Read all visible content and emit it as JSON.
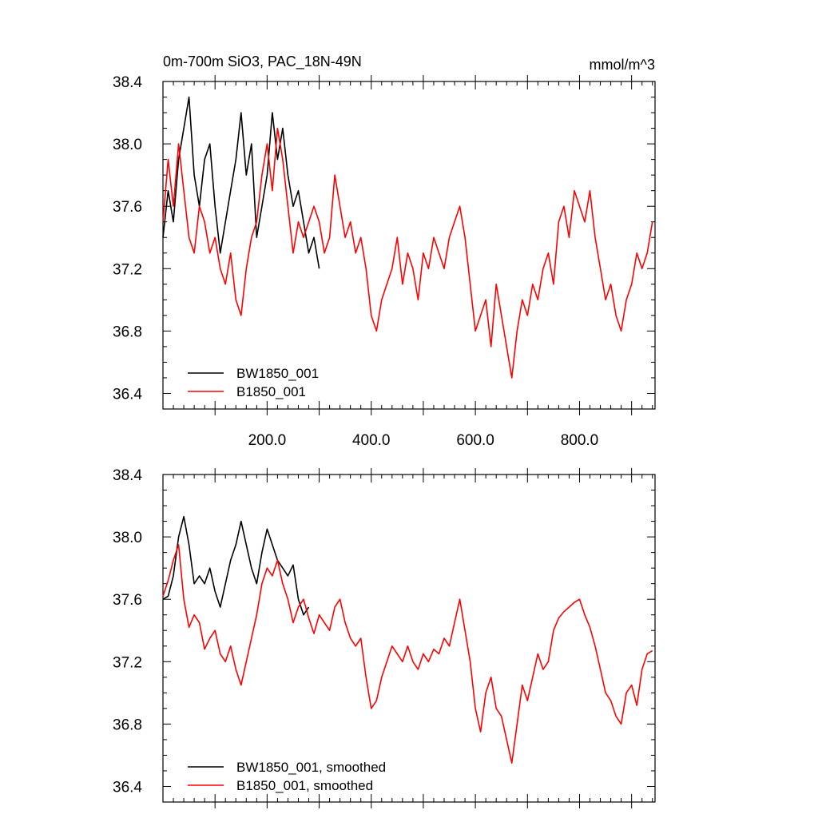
{
  "chart_data": [
    {
      "type": "line",
      "title": "0m-700m SiO3, PAC_18N-49N",
      "units_label": "mmol/m^3",
      "xlabel": "",
      "ylabel": "",
      "xlim": [
        0,
        945
      ],
      "ylim": [
        36.3,
        38.4
      ],
      "yticks": [
        38.4,
        38.0,
        37.6,
        37.2,
        36.8,
        36.4
      ],
      "ytick_labels": [
        "38.4",
        "38.0",
        "37.6",
        "37.2",
        "36.8",
        "36.4"
      ],
      "xticks": [
        200,
        400,
        600,
        800
      ],
      "xtick_labels": [
        "200.0",
        "400.0",
        "600.0",
        "800.0"
      ],
      "grid": false,
      "legend_position": "bottom-left",
      "series": [
        {
          "name": "BW1850_001",
          "color": "#000000",
          "x": [
            0,
            10,
            20,
            30,
            40,
            50,
            60,
            70,
            80,
            90,
            100,
            110,
            120,
            130,
            140,
            150,
            160,
            170,
            180,
            190,
            200,
            210,
            220,
            230,
            240,
            250,
            260,
            270,
            280,
            290,
            300
          ],
          "y": [
            37.4,
            37.7,
            37.5,
            37.9,
            38.1,
            38.3,
            37.8,
            37.6,
            37.9,
            38.0,
            37.6,
            37.3,
            37.5,
            37.7,
            37.9,
            38.2,
            37.8,
            38.0,
            37.4,
            37.6,
            37.8,
            38.2,
            37.9,
            38.1,
            37.8,
            37.6,
            37.7,
            37.5,
            37.3,
            37.4,
            37.2
          ]
        },
        {
          "name": "B1850_001",
          "color": "#ff0000",
          "x": [
            0,
            10,
            20,
            30,
            40,
            50,
            60,
            70,
            80,
            90,
            100,
            110,
            120,
            130,
            140,
            150,
            160,
            170,
            180,
            190,
            200,
            210,
            220,
            230,
            240,
            250,
            260,
            270,
            280,
            290,
            300,
            310,
            320,
            330,
            340,
            350,
            360,
            370,
            380,
            390,
            400,
            410,
            420,
            430,
            440,
            450,
            460,
            470,
            480,
            490,
            500,
            510,
            520,
            530,
            540,
            550,
            560,
            570,
            580,
            590,
            600,
            610,
            620,
            630,
            640,
            650,
            660,
            670,
            680,
            690,
            700,
            710,
            720,
            730,
            740,
            750,
            760,
            770,
            780,
            790,
            800,
            810,
            820,
            830,
            840,
            850,
            860,
            870,
            880,
            890,
            900,
            910,
            920,
            930,
            940
          ],
          "y": [
            37.5,
            37.9,
            37.6,
            38.0,
            37.7,
            37.4,
            37.3,
            37.6,
            37.5,
            37.3,
            37.4,
            37.2,
            37.1,
            37.3,
            37.0,
            36.9,
            37.2,
            37.4,
            37.5,
            37.8,
            38.0,
            37.7,
            38.1,
            37.9,
            37.6,
            37.3,
            37.5,
            37.4,
            37.5,
            37.6,
            37.5,
            37.3,
            37.4,
            37.8,
            37.6,
            37.4,
            37.5,
            37.3,
            37.4,
            37.2,
            36.9,
            36.8,
            37.0,
            37.1,
            37.2,
            37.4,
            37.1,
            37.3,
            37.2,
            37.0,
            37.3,
            37.2,
            37.4,
            37.3,
            37.2,
            37.4,
            37.5,
            37.6,
            37.4,
            37.1,
            36.8,
            36.9,
            37.0,
            36.7,
            37.1,
            36.9,
            36.7,
            36.5,
            36.8,
            37.0,
            36.9,
            37.1,
            37.0,
            37.2,
            37.3,
            37.1,
            37.5,
            37.6,
            37.4,
            37.7,
            37.6,
            37.5,
            37.7,
            37.4,
            37.2,
            37.0,
            37.1,
            36.9,
            36.8,
            37.0,
            37.1,
            37.3,
            37.2,
            37.3,
            37.5
          ]
        }
      ]
    },
    {
      "type": "line",
      "title": "",
      "xlabel": "",
      "ylabel": "",
      "xlim": [
        0,
        945
      ],
      "ylim": [
        36.3,
        38.4
      ],
      "yticks": [
        38.4,
        38.0,
        37.6,
        37.2,
        36.8,
        36.4
      ],
      "ytick_labels": [
        "38.4",
        "38.0",
        "37.6",
        "37.2",
        "36.8",
        "36.4"
      ],
      "grid": false,
      "legend_position": "bottom-left",
      "series": [
        {
          "name": "BW1850_001, smoothed",
          "color": "#000000",
          "x": [
            0,
            10,
            20,
            30,
            40,
            50,
            60,
            70,
            80,
            90,
            100,
            110,
            120,
            130,
            140,
            150,
            160,
            170,
            180,
            190,
            200,
            210,
            220,
            230,
            240,
            250,
            260,
            270,
            280
          ],
          "y": [
            37.6,
            37.62,
            37.75,
            38.0,
            38.13,
            37.95,
            37.7,
            37.75,
            37.7,
            37.8,
            37.65,
            37.55,
            37.7,
            37.85,
            37.95,
            38.1,
            37.95,
            37.8,
            37.7,
            37.9,
            38.05,
            37.95,
            37.85,
            37.8,
            37.75,
            37.82,
            37.6,
            37.5,
            37.55
          ]
        },
        {
          "name": "B1850_001, smoothed",
          "color": "#ff0000",
          "x": [
            0,
            10,
            20,
            30,
            40,
            50,
            60,
            70,
            80,
            90,
            100,
            110,
            120,
            130,
            140,
            150,
            160,
            170,
            180,
            190,
            200,
            210,
            220,
            230,
            240,
            250,
            260,
            270,
            280,
            290,
            300,
            310,
            320,
            330,
            340,
            350,
            360,
            370,
            380,
            390,
            400,
            410,
            420,
            430,
            440,
            450,
            460,
            470,
            480,
            490,
            500,
            510,
            520,
            530,
            540,
            550,
            560,
            570,
            580,
            590,
            600,
            610,
            620,
            630,
            640,
            650,
            660,
            670,
            680,
            690,
            700,
            710,
            720,
            730,
            740,
            750,
            760,
            770,
            780,
            790,
            800,
            810,
            820,
            830,
            840,
            850,
            860,
            870,
            880,
            890,
            900,
            910,
            920,
            930,
            940
          ],
          "y": [
            37.62,
            37.72,
            37.85,
            37.95,
            37.6,
            37.42,
            37.5,
            37.45,
            37.28,
            37.35,
            37.4,
            37.25,
            37.2,
            37.3,
            37.15,
            37.05,
            37.2,
            37.35,
            37.5,
            37.7,
            37.8,
            37.75,
            37.85,
            37.7,
            37.6,
            37.45,
            37.55,
            37.6,
            37.48,
            37.38,
            37.5,
            37.45,
            37.4,
            37.55,
            37.6,
            37.45,
            37.35,
            37.3,
            37.35,
            37.1,
            36.9,
            36.95,
            37.1,
            37.2,
            37.3,
            37.25,
            37.2,
            37.3,
            37.2,
            37.15,
            37.25,
            37.2,
            37.28,
            37.25,
            37.35,
            37.3,
            37.45,
            37.6,
            37.4,
            37.2,
            36.9,
            36.75,
            37.0,
            37.1,
            36.9,
            36.85,
            36.7,
            36.55,
            36.8,
            37.05,
            36.95,
            37.1,
            37.25,
            37.15,
            37.2,
            37.4,
            37.48,
            37.52,
            37.55,
            37.58,
            37.6,
            37.5,
            37.42,
            37.3,
            37.15,
            37.0,
            36.95,
            36.85,
            36.8,
            37.0,
            37.05,
            36.92,
            37.15,
            37.25,
            37.27
          ]
        }
      ]
    }
  ]
}
